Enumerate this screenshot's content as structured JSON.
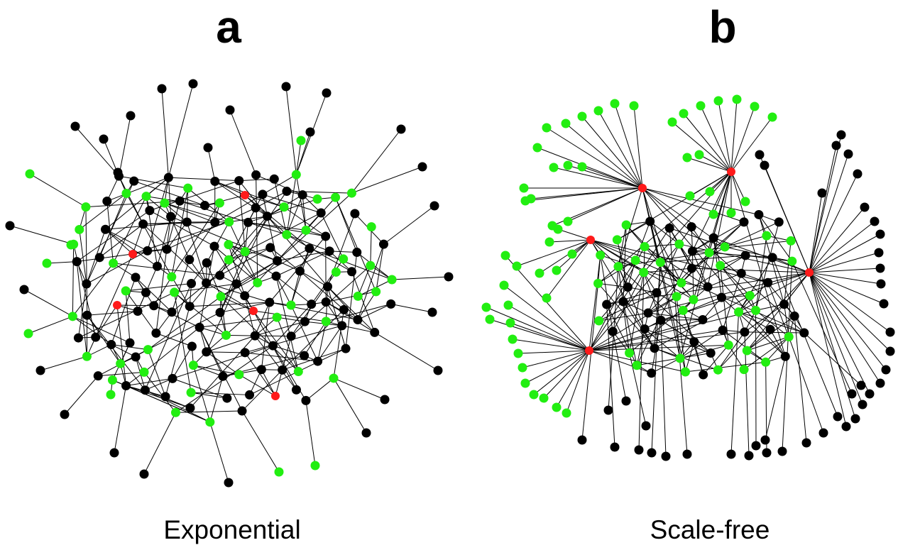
{
  "panels": [
    {
      "letter": "a",
      "caption": "Exponential"
    },
    {
      "letter": "b",
      "caption": "Scale-free"
    }
  ],
  "colors": {
    "regular_node": "#000000",
    "highlighted_node": "#22ee11",
    "hub_node": "#ff1a1a",
    "edge": "#000000"
  }
}
